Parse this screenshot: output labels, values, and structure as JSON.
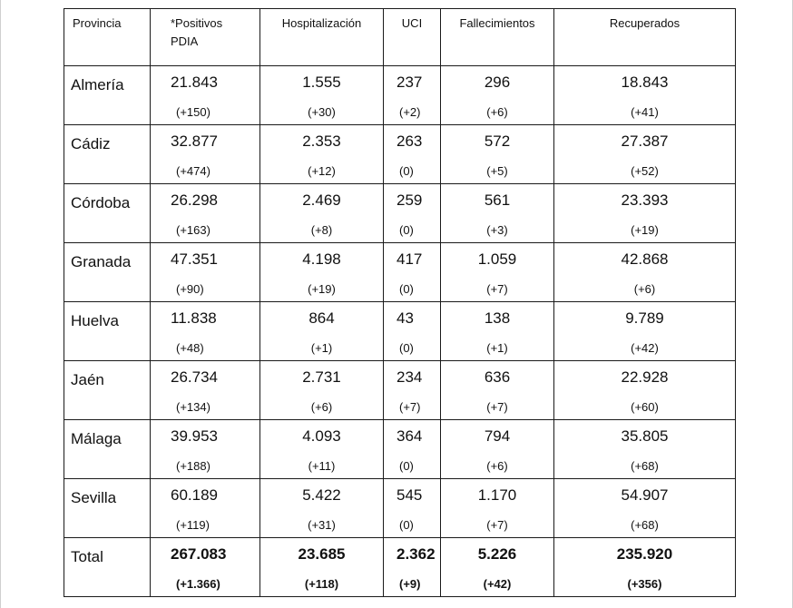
{
  "headers": {
    "provincia": "Provincia",
    "positivos_line1": "*Positivos",
    "positivos_line2": "PDIA",
    "hospitalizacion": "Hospitalización",
    "uci": "UCI",
    "fallecimientos": "Fallecimientos",
    "recuperados": "Recuperados"
  },
  "rows": [
    {
      "name": "Almería",
      "positivos": "21.843",
      "positivos_delta": "(+150)",
      "hosp": "1.555",
      "hosp_delta": "(+30)",
      "uci": "237",
      "uci_delta": "(+2)",
      "fall": "296",
      "fall_delta": "(+6)",
      "rec": "18.843",
      "rec_delta": "(+41)"
    },
    {
      "name": "Cádiz",
      "positivos": "32.877",
      "positivos_delta": "(+474)",
      "hosp": "2.353",
      "hosp_delta": "(+12)",
      "uci": "263",
      "uci_delta": "(0)",
      "fall": "572",
      "fall_delta": "(+5)",
      "rec": "27.387",
      "rec_delta": "(+52)"
    },
    {
      "name": "Córdoba",
      "positivos": "26.298",
      "positivos_delta": "(+163)",
      "hosp": "2.469",
      "hosp_delta": "(+8)",
      "uci": "259",
      "uci_delta": "(0)",
      "fall": "561",
      "fall_delta": "(+3)",
      "rec": "23.393",
      "rec_delta": "(+19)"
    },
    {
      "name": "Granada",
      "positivos": "47.351",
      "positivos_delta": "(+90)",
      "hosp": "4.198",
      "hosp_delta": "(+19)",
      "uci": "417",
      "uci_delta": "(0)",
      "fall": "1.059",
      "fall_delta": "(+7)",
      "rec": "42.868",
      "rec_delta": "(+6)"
    },
    {
      "name": "Huelva",
      "positivos": "11.838",
      "positivos_delta": "(+48)",
      "hosp": "864",
      "hosp_delta": "(+1)",
      "uci": "43",
      "uci_delta": "(0)",
      "fall": "138",
      "fall_delta": "(+1)",
      "rec": "9.789",
      "rec_delta": "(+42)"
    },
    {
      "name": "Jaén",
      "positivos": "26.734",
      "positivos_delta": "(+134)",
      "hosp": "2.731",
      "hosp_delta": "(+6)",
      "uci": "234",
      "uci_delta": "(+7)",
      "fall": "636",
      "fall_delta": "(+7)",
      "rec": "22.928",
      "rec_delta": "(+60)"
    },
    {
      "name": "Málaga",
      "positivos": "39.953",
      "positivos_delta": "(+188)",
      "hosp": "4.093",
      "hosp_delta": "(+11)",
      "uci": "364",
      "uci_delta": "(0)",
      "fall": "794",
      "fall_delta": "(+6)",
      "rec": "35.805",
      "rec_delta": "(+68)"
    },
    {
      "name": "Sevilla",
      "positivos": "60.189",
      "positivos_delta": "(+119)",
      "hosp": "5.422",
      "hosp_delta": "(+31)",
      "uci": "545",
      "uci_delta": "(0)",
      "fall": "1.170",
      "fall_delta": "(+7)",
      "rec": "54.907",
      "rec_delta": "(+68)"
    }
  ],
  "total": {
    "name": "Total",
    "positivos": "267.083",
    "positivos_delta": "(+1.366)",
    "hosp": "23.685",
    "hosp_delta": "(+118)",
    "uci": "2.362",
    "uci_delta": "(+9)",
    "fall": "5.226",
    "fall_delta": "(+42)",
    "rec": "235.920",
    "rec_delta": "(+356)"
  }
}
